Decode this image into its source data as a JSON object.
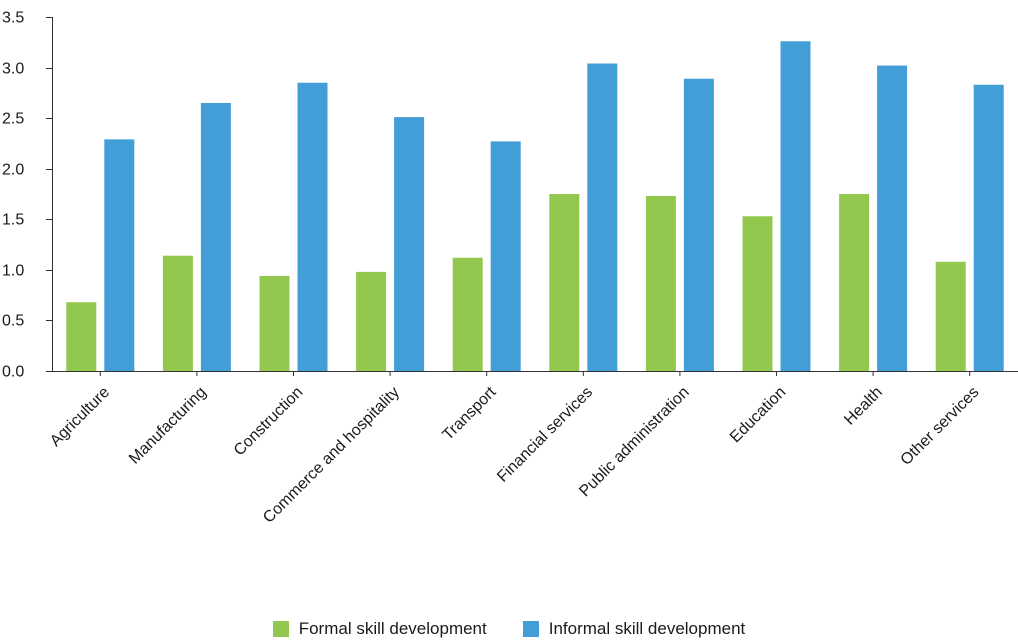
{
  "chart_data": {
    "type": "bar",
    "title": "",
    "xlabel": "",
    "ylabel": "",
    "ylim": [
      0,
      3.5
    ],
    "yticks": [
      "0.0",
      "0.5",
      "1.0",
      "1.5",
      "2.0",
      "2.5",
      "3.0",
      "3.5"
    ],
    "grid": false,
    "legend_position": "bottom",
    "categories": [
      "Agriculture",
      "Manufacturing",
      "Construction",
      "Commerce and hospitality",
      "Transport",
      "Financial services",
      "Public administration",
      "Education",
      "Health",
      "Other services"
    ],
    "series": [
      {
        "name": "Formal skill development",
        "color": "#92c84e",
        "values": [
          0.68,
          1.14,
          0.94,
          0.98,
          1.12,
          1.75,
          1.73,
          1.53,
          1.75,
          1.08
        ]
      },
      {
        "name": "Informal skill development",
        "color": "#439dd6",
        "values": [
          2.29,
          2.65,
          2.85,
          2.51,
          2.27,
          3.04,
          2.89,
          3.26,
          3.02,
          2.83
        ]
      }
    ]
  },
  "legend": {
    "items": [
      {
        "label": "Formal skill development",
        "color": "#92c84e"
      },
      {
        "label": "Informal skill development",
        "color": "#439dd6"
      }
    ]
  }
}
